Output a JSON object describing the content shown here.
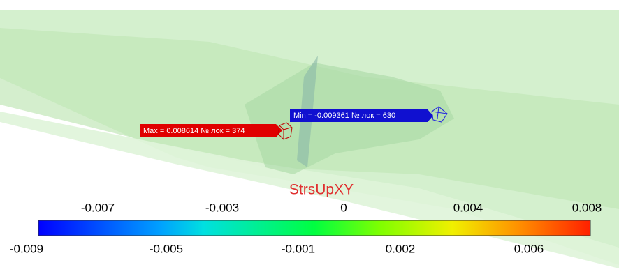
{
  "legend": {
    "title": "StrsUpXY",
    "top_labels": [
      -0.007,
      -0.003,
      0,
      0.004,
      0.008
    ],
    "bottom_labels": [
      -0.009,
      -0.005,
      -0.001,
      0.002,
      0.006
    ]
  },
  "markers": {
    "max": "Max = 0.008614 № лок = 374",
    "min": "Min = -0.009361 № лок = 630"
  }
}
